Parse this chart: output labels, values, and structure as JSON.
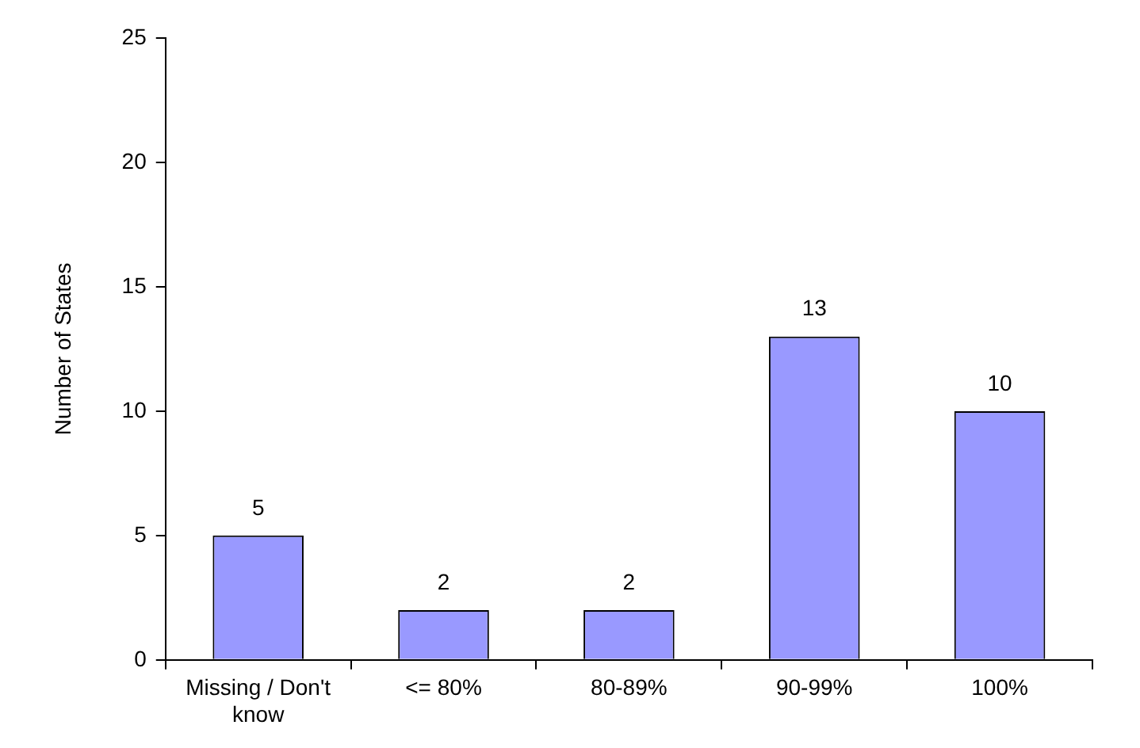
{
  "chart_data": {
    "type": "bar",
    "ylabel": "Number of States",
    "categories": [
      "Missing / Don't know",
      "<= 80%",
      "80-89%",
      "90-99%",
      "100%"
    ],
    "values": [
      5,
      2,
      2,
      13,
      10
    ],
    "color": "#9999ff",
    "ylim": [
      0,
      25
    ],
    "yticks": [
      0,
      5,
      10,
      15,
      20,
      25
    ],
    "grid": false,
    "legend": false,
    "data_labels": true
  }
}
